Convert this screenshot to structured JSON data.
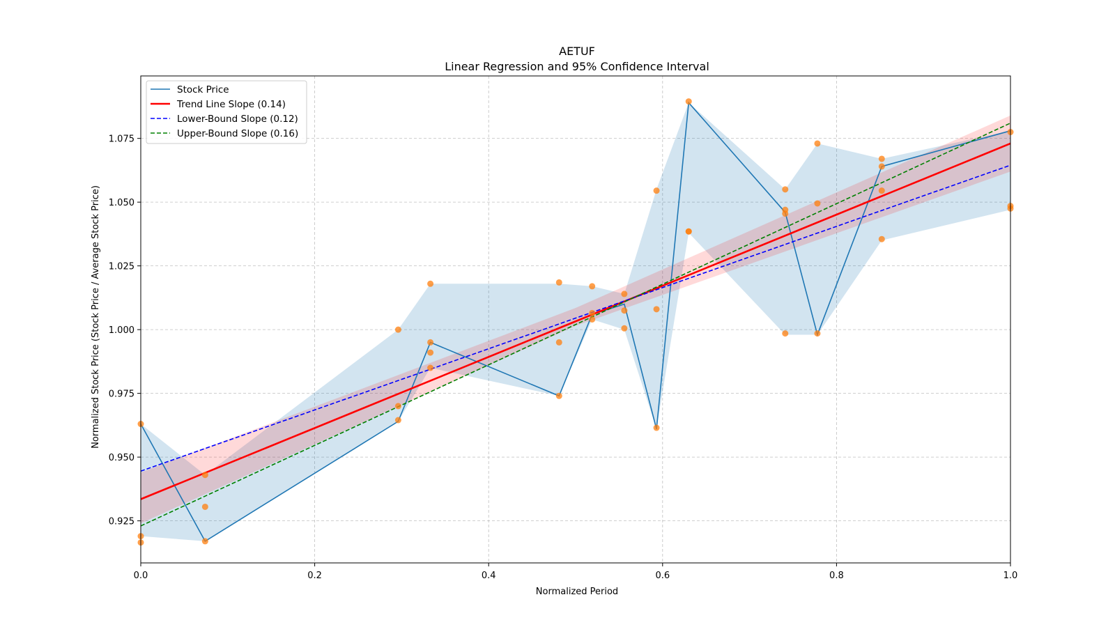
{
  "chart_data": {
    "type": "line",
    "title": "AETUF",
    "subtitle": "Linear Regression and 95% Confidence Interval",
    "xlabel": "Normalized Period",
    "ylabel": "Normalized Stock Price (Stock Price / Average Stock Price)",
    "xlim": [
      0.0,
      1.0
    ],
    "ylim": [
      0.9085,
      1.0995
    ],
    "x_ticks": [
      0.0,
      0.2,
      0.4,
      0.6,
      0.8,
      1.0
    ],
    "x_tick_labels": [
      "0.0",
      "0.2",
      "0.4",
      "0.6",
      "0.8",
      "1.0"
    ],
    "y_ticks": [
      0.925,
      0.95,
      0.975,
      1.0,
      1.025,
      1.05,
      1.075
    ],
    "y_tick_labels": [
      "0.925",
      "0.950",
      "0.975",
      "1.000",
      "1.025",
      "1.050",
      "1.075"
    ],
    "grid": true,
    "legend_position": "top-left",
    "colors": {
      "stock": "#1f77b4",
      "stock_band": "#1f77b4",
      "trend": "#ff0000",
      "trend_band": "#ff0000",
      "lower": "#0000ff",
      "upper": "#008000",
      "scatter": "#ff7f0e",
      "grid": "#b0b0b0"
    },
    "series": [
      {
        "name": "Stock Price",
        "kind": "line",
        "x": [
          0.0,
          0.074,
          0.296,
          0.333,
          0.481,
          0.519,
          0.556,
          0.593,
          0.63,
          0.741,
          0.778,
          0.852,
          1.0
        ],
        "y": [
          0.963,
          0.917,
          0.964,
          0.995,
          0.974,
          1.006,
          1.01,
          0.961,
          1.089,
          1.046,
          0.998,
          1.064,
          1.078
        ]
      },
      {
        "name": "Stock Price Range",
        "kind": "band",
        "x": [
          0.0,
          0.074,
          0.296,
          0.333,
          0.481,
          0.519,
          0.556,
          0.593,
          0.63,
          0.741,
          0.778,
          0.852,
          1.0
        ],
        "low": [
          0.919,
          0.917,
          0.964,
          0.985,
          0.974,
          1.004,
          1.0,
          0.961,
          1.038,
          0.998,
          0.998,
          1.035,
          1.047
        ],
        "high": [
          0.963,
          0.943,
          1.0,
          1.018,
          1.018,
          1.017,
          1.014,
          1.055,
          1.089,
          1.055,
          1.073,
          1.067,
          1.078
        ]
      },
      {
        "name": "Trend Line Slope (0.14)",
        "kind": "line",
        "x": [
          0.0,
          1.0
        ],
        "y": [
          0.9335,
          1.073
        ]
      },
      {
        "name": "Trend Confidence Band",
        "kind": "band",
        "x": [
          0.0,
          0.5,
          1.0
        ],
        "low": [
          0.924,
          1.0015,
          1.062
        ],
        "high": [
          0.944,
          1.0085,
          1.084
        ]
      },
      {
        "name": "Lower-Bound Slope (0.12)",
        "kind": "dashed",
        "x": [
          0.0,
          1.0
        ],
        "y": [
          0.9445,
          1.0645
        ]
      },
      {
        "name": "Upper-Bound Slope (0.16)",
        "kind": "dashed",
        "x": [
          0.0,
          1.0
        ],
        "y": [
          0.923,
          1.081
        ]
      },
      {
        "name": "Observations",
        "kind": "scatter",
        "points": [
          [
            0.0,
            0.963
          ],
          [
            0.0,
            0.919
          ],
          [
            0.0,
            0.9165
          ],
          [
            0.074,
            0.943
          ],
          [
            0.074,
            0.9305
          ],
          [
            0.074,
            0.917
          ],
          [
            0.296,
            1.0
          ],
          [
            0.296,
            0.97
          ],
          [
            0.296,
            0.9645
          ],
          [
            0.333,
            1.018
          ],
          [
            0.333,
            0.995
          ],
          [
            0.333,
            0.991
          ],
          [
            0.333,
            0.985
          ],
          [
            0.481,
            1.0185
          ],
          [
            0.481,
            0.995
          ],
          [
            0.481,
            0.974
          ],
          [
            0.519,
            1.017
          ],
          [
            0.519,
            1.0065
          ],
          [
            0.519,
            1.004
          ],
          [
            0.556,
            1.014
          ],
          [
            0.556,
            1.0075
          ],
          [
            0.556,
            1.0005
          ],
          [
            0.593,
            1.0545
          ],
          [
            0.593,
            1.008
          ],
          [
            0.593,
            0.9615
          ],
          [
            0.63,
            1.0895
          ],
          [
            0.63,
            1.0385
          ],
          [
            0.63,
            1.0385
          ],
          [
            0.741,
            1.055
          ],
          [
            0.741,
            1.047
          ],
          [
            0.741,
            1.0455
          ],
          [
            0.741,
            0.9985
          ],
          [
            0.778,
            1.073
          ],
          [
            0.778,
            1.0495
          ],
          [
            0.778,
            0.9985
          ],
          [
            0.852,
            1.067
          ],
          [
            0.852,
            1.064
          ],
          [
            0.852,
            1.0545
          ],
          [
            0.852,
            1.0355
          ],
          [
            1.0,
            1.0775
          ],
          [
            1.0,
            1.0485
          ],
          [
            1.0,
            1.0475
          ]
        ]
      }
    ],
    "legend": [
      {
        "label": "Stock Price",
        "style": "solid",
        "color": "#1f77b4"
      },
      {
        "label": "Trend Line Slope (0.14)",
        "style": "solid",
        "color": "#ff0000"
      },
      {
        "label": "Lower-Bound Slope (0.12)",
        "style": "dashed",
        "color": "#0000ff"
      },
      {
        "label": "Upper-Bound Slope (0.16)",
        "style": "dashed",
        "color": "#008000"
      }
    ]
  }
}
